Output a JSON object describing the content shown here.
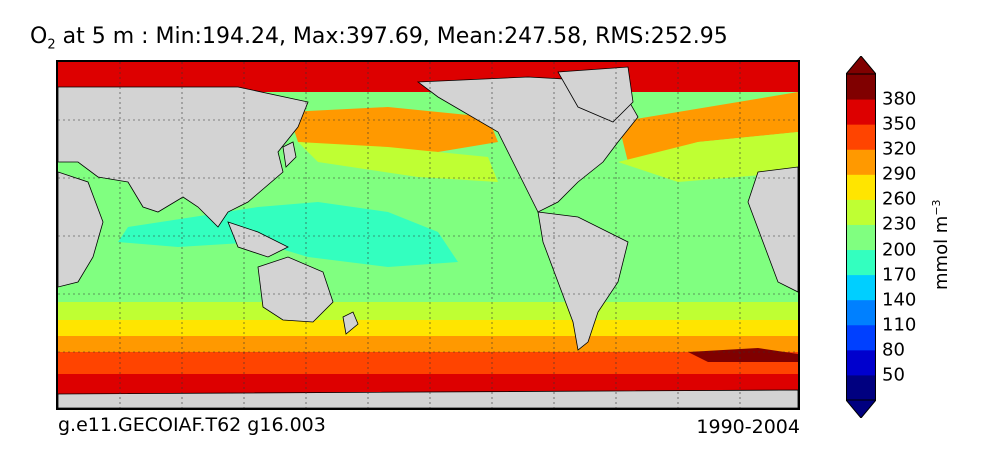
{
  "title": {
    "prefix": "O",
    "subscript": "2",
    "rest": " at 5 m : Min:194.24, Max:397.69, Mean:247.58, RMS:252.95"
  },
  "footer": {
    "case_name": "g.e11.GECOIAF.T62 g16.003",
    "years": "1990-2004"
  },
  "colorbar": {
    "unit": "mmol m",
    "unit_exp": "−3",
    "ticks": [
      "50",
      "80",
      "110",
      "140",
      "170",
      "200",
      "230",
      "260",
      "290",
      "320",
      "350",
      "380"
    ],
    "colors": [
      "#000080",
      "#0000cd",
      "#0040ff",
      "#0080ff",
      "#00cfff",
      "#33ffbf",
      "#80ff80",
      "#bfff33",
      "#ffe500",
      "#ff9900",
      "#ff4400",
      "#dd0000",
      "#800000"
    ]
  },
  "map": {
    "land_color": "#d3d3d3",
    "projection": "cylindrical",
    "gridlines": "dashed",
    "ocean_bands": [
      {
        "region": "arctic / far north",
        "level": "350-380"
      },
      {
        "region": "north pacific / north atlantic",
        "level": "260-320"
      },
      {
        "region": "subtropics",
        "level": "200-230"
      },
      {
        "region": "tropical west pacific / indian ocean",
        "level": "170-200"
      },
      {
        "region": "southern mid latitudes",
        "level": "230-290"
      },
      {
        "region": "southern ocean",
        "level": "320-380"
      }
    ]
  }
}
